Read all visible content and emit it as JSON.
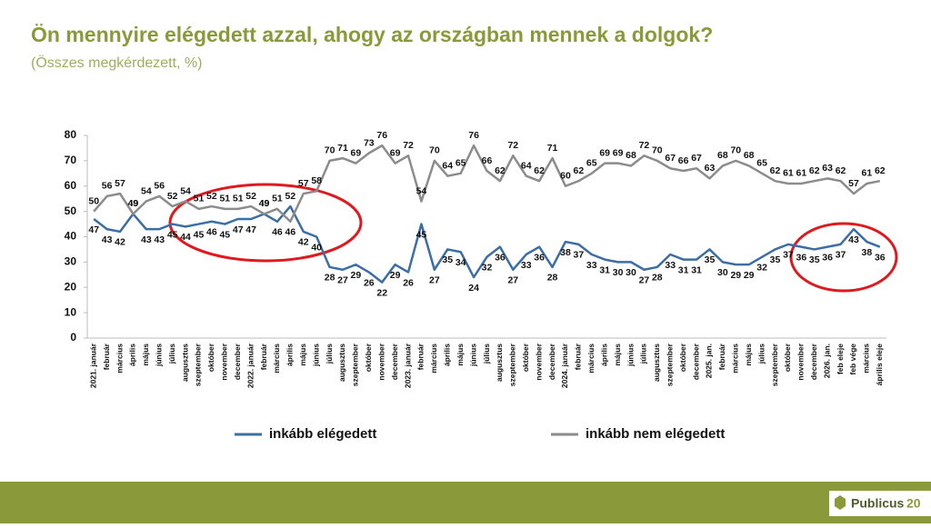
{
  "chart_data": {
    "type": "line",
    "title": "Ön mennyire elégedett azzal, ahogy az országban mennek a dolgok?",
    "subtitle": "(Összes megkérdezett, %)",
    "categories": [
      "2021. január",
      "február",
      "március",
      "április",
      "május",
      "június",
      "július",
      "augusztus",
      "szeptember",
      "október",
      "november",
      "december",
      "2022. január",
      "február",
      "március",
      "április",
      "május",
      "június",
      "július",
      "augusztus",
      "szeptember",
      "október",
      "november",
      "december",
      "2023. január",
      "február",
      "március",
      "április",
      "május",
      "június",
      "július",
      "augusztus",
      "szeptember",
      "október",
      "november",
      "december",
      "2024. január",
      "február",
      "március",
      "április",
      "május",
      "június",
      "július",
      "augusztus",
      "szeptember",
      "október",
      "december",
      "2025. jan.",
      "február",
      "március",
      "május",
      "július",
      "szeptember",
      "október",
      "november",
      "december",
      "2026. jan.",
      "feb eleje",
      "feb vége",
      "március",
      "április eleje"
    ],
    "series": [
      {
        "name": "inkább elégedett",
        "color": "#3b6ea5",
        "values": [
          47,
          43,
          42,
          49,
          43,
          43,
          45,
          44,
          45,
          46,
          45,
          47,
          47,
          49,
          46,
          52,
          42,
          40,
          28,
          27,
          29,
          26,
          22,
          29,
          26,
          45,
          27,
          35,
          34,
          24,
          32,
          36,
          27,
          33,
          36,
          28,
          38,
          37,
          33,
          31,
          30,
          30,
          27,
          28,
          33,
          31,
          31,
          35,
          30,
          29,
          29,
          32,
          35,
          37,
          36,
          35,
          36,
          37,
          43,
          38,
          36
        ]
      },
      {
        "name": "inkább nem elégedett",
        "color": "#8c8c8c",
        "values": [
          50,
          56,
          57,
          49,
          54,
          56,
          52,
          54,
          51,
          52,
          51,
          51,
          52,
          49,
          51,
          46,
          57,
          58,
          70,
          71,
          69,
          73,
          76,
          69,
          72,
          54,
          70,
          64,
          65,
          76,
          66,
          62,
          72,
          64,
          62,
          71,
          60,
          62,
          65,
          69,
          69,
          68,
          72,
          70,
          67,
          66,
          67,
          63,
          68,
          70,
          68,
          65,
          62,
          61,
          61,
          62,
          63,
          62,
          57,
          61,
          62
        ]
      }
    ],
    "ylim": [
      0,
      80
    ],
    "yticks": [
      0,
      10,
      20,
      30,
      40,
      50,
      60,
      70,
      80
    ],
    "grid": false,
    "footer": {
      "brand": "Publicus",
      "brand_number": "20"
    }
  }
}
